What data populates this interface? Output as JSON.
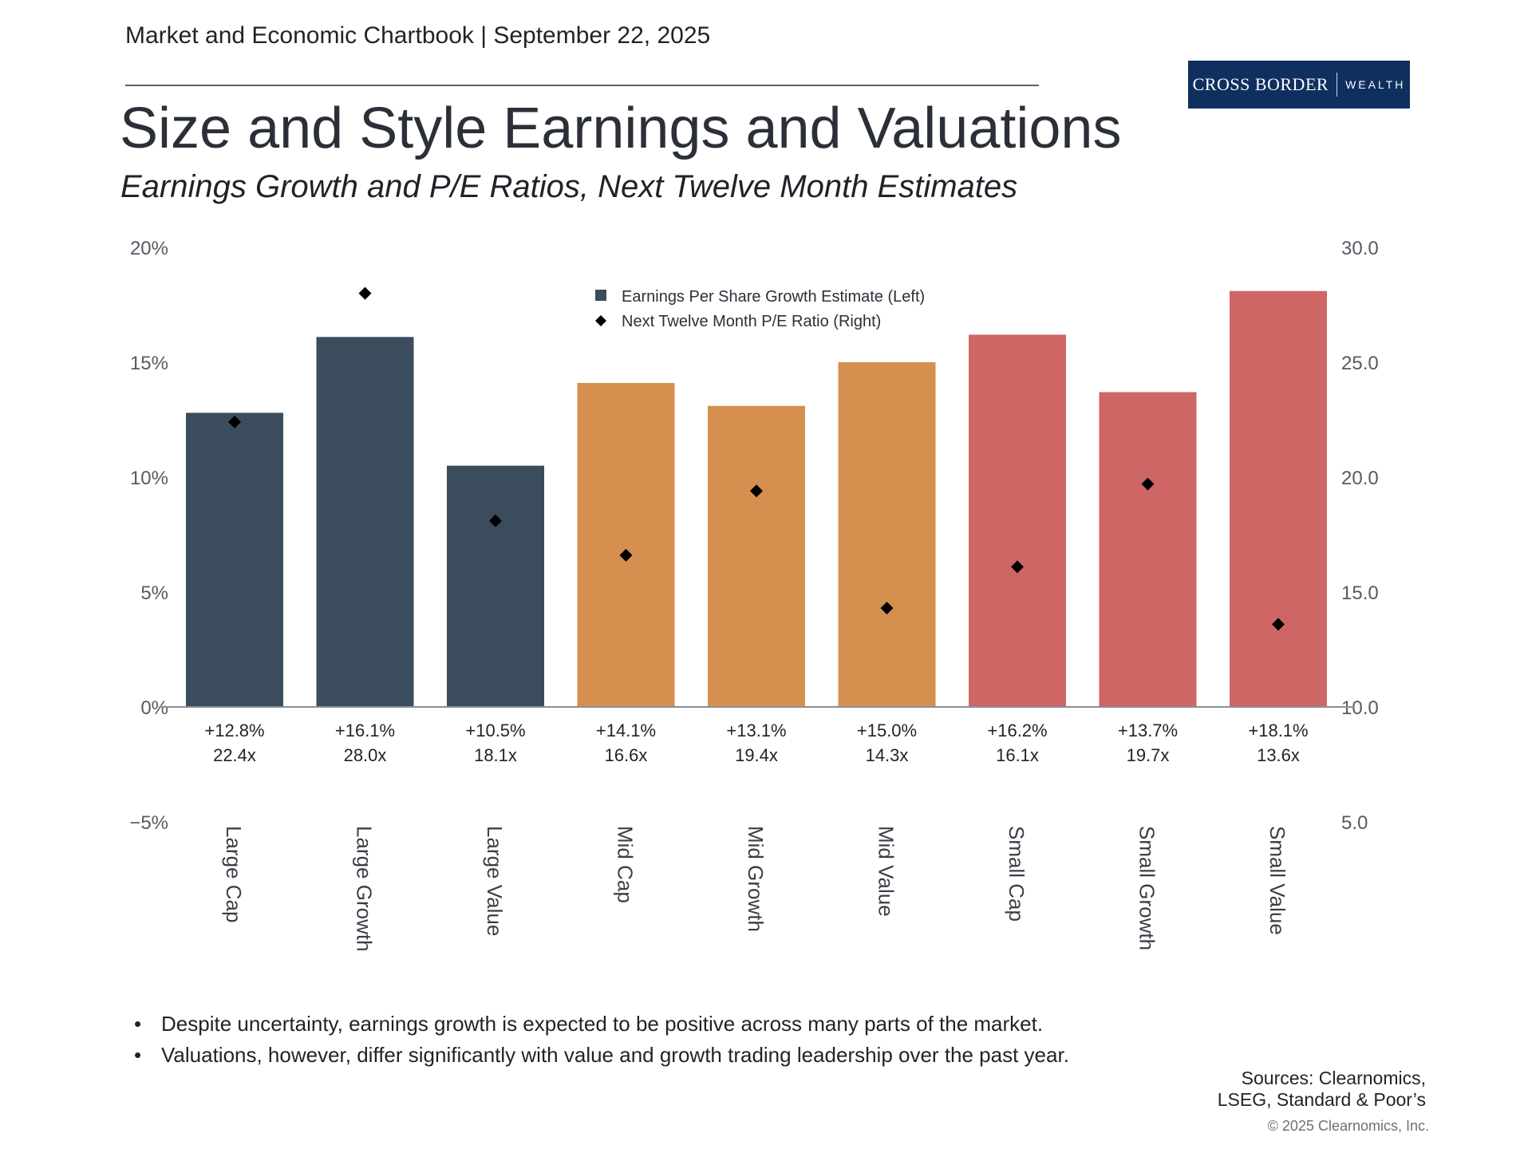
{
  "header": {
    "chartbook": "Market and Economic Chartbook | September 22, 2025",
    "logo_main": "CROSS BORDER",
    "logo_sub": "WEALTH",
    "logo_color": "#0f2f5f"
  },
  "title": "Size and Style Earnings and Valuations",
  "subtitle": "Earnings Growth and P/E Ratios, Next Twelve Month Estimates",
  "chart_data": {
    "type": "bar",
    "categories": [
      "Large Cap",
      "Large Growth",
      "Large Value",
      "Mid Cap",
      "Mid Growth",
      "Mid Value",
      "Small Cap",
      "Small Growth",
      "Small Value"
    ],
    "series": [
      {
        "name": "Earnings Per Share Growth Estimate (Left)",
        "axis": "left",
        "mark": "bar",
        "values": [
          12.8,
          16.1,
          10.5,
          14.1,
          13.1,
          15.0,
          16.2,
          13.7,
          18.1
        ]
      },
      {
        "name": "Next Twelve Month P/E Ratio (Right)",
        "axis": "right",
        "mark": "diamond",
        "values": [
          22.4,
          28.0,
          18.1,
          16.6,
          19.4,
          14.3,
          16.1,
          19.7,
          13.6
        ]
      }
    ],
    "bar_colors": [
      "#3b4d5c",
      "#3b4d5c",
      "#3b4d5c",
      "#d58f4f",
      "#d58f4f",
      "#d58f4f",
      "#cf6666",
      "#cf6666",
      "#cf6666"
    ],
    "marker_color": "#000000",
    "value_labels": [
      "+12.8%",
      "+16.1%",
      "+10.5%",
      "+14.1%",
      "+13.1%",
      "+15.0%",
      "+16.2%",
      "+13.7%",
      "+18.1%"
    ],
    "pe_labels": [
      "22.4x",
      "28.0x",
      "18.1x",
      "16.6x",
      "19.4x",
      "14.3x",
      "16.1x",
      "19.7x",
      "13.6x"
    ],
    "left_axis": {
      "ylim": [
        -5,
        20
      ],
      "ticks": [
        20,
        15,
        10,
        5,
        0,
        -5
      ],
      "tick_labels": [
        "20%",
        "15%",
        "10%",
        "5%",
        "0%",
        "−5%"
      ]
    },
    "right_axis": {
      "ylim": [
        5,
        30
      ],
      "ticks": [
        30,
        25,
        20,
        15,
        10,
        5
      ],
      "tick_labels": [
        "30.0",
        "25.0",
        "20.0",
        "15.0",
        "10.0",
        "5.0"
      ]
    },
    "legend_position": "top-center",
    "grid": false
  },
  "bullets": [
    "Despite uncertainty, earnings growth is expected to be positive across many parts of the market.",
    "Valuations, however, differ significantly with value and growth trading leadership over the past year."
  ],
  "sources": [
    "Sources: Clearnomics,",
    "LSEG, Standard & Poor’s"
  ],
  "copyright": "© 2025 Clearnomics, Inc."
}
